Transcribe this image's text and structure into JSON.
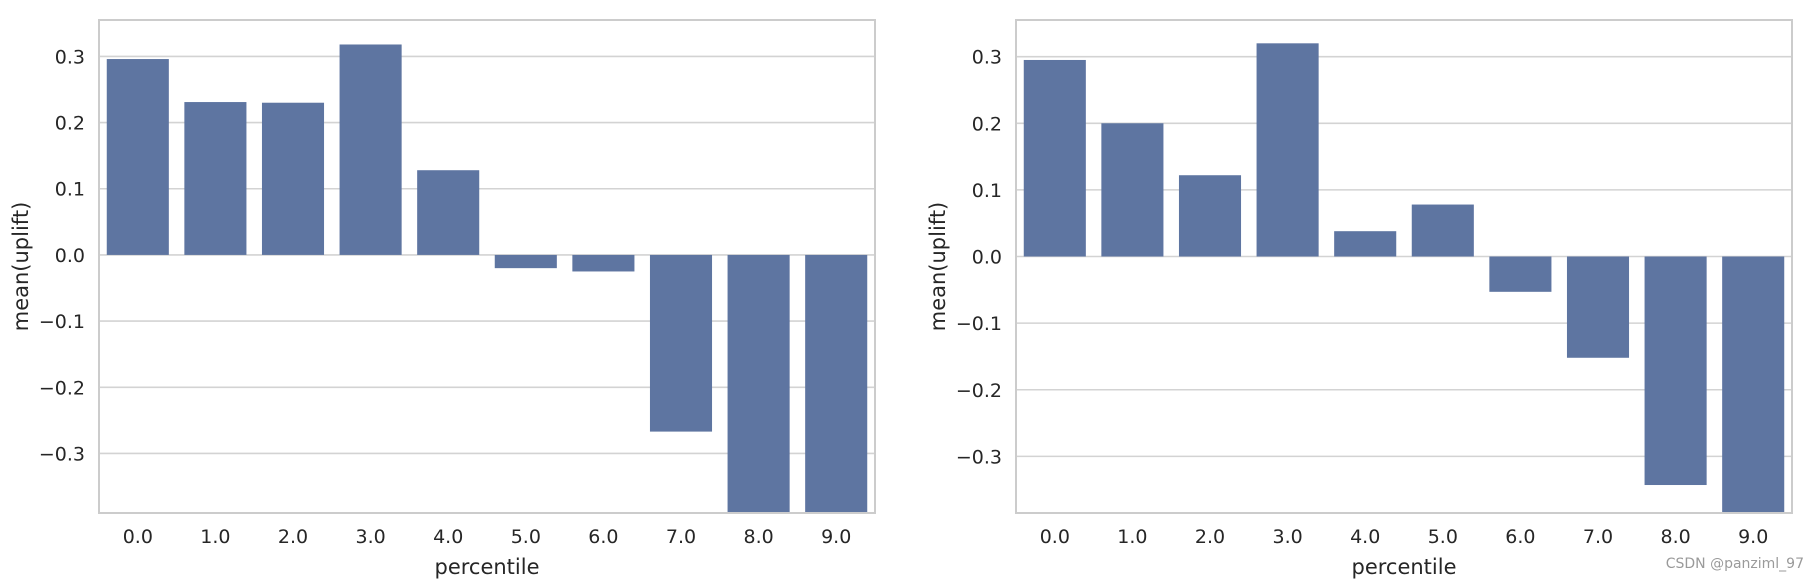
{
  "chart_data": [
    {
      "type": "bar",
      "categories": [
        "0.0",
        "1.0",
        "2.0",
        "3.0",
        "4.0",
        "5.0",
        "6.0",
        "7.0",
        "8.0",
        "9.0"
      ],
      "values": [
        0.296,
        0.231,
        0.23,
        0.318,
        0.128,
        -0.02,
        -0.025,
        -0.267,
        -0.39,
        -0.39
      ],
      "xlabel": "percentile",
      "ylabel": "mean(uplift)",
      "ylim": [
        -0.39,
        0.355
      ],
      "yticks": [
        -0.3,
        -0.2,
        -0.1,
        0.0,
        0.1,
        0.2,
        0.3
      ],
      "ytick_labels": [
        "−0.3",
        "−0.2",
        "−0.1",
        "0.0",
        "0.1",
        "0.2",
        "0.3"
      ],
      "grid": true,
      "bar_color": "#5e75a1"
    },
    {
      "type": "bar",
      "categories": [
        "0.0",
        "1.0",
        "2.0",
        "3.0",
        "4.0",
        "5.0",
        "6.0",
        "7.0",
        "8.0",
        "9.0"
      ],
      "values": [
        0.295,
        0.2,
        0.122,
        0.32,
        0.038,
        0.078,
        -0.053,
        -0.152,
        -0.343,
        -0.385
      ],
      "xlabel": "percentile",
      "ylabel": "mean(uplift)",
      "ylim": [
        -0.385,
        0.355
      ],
      "yticks": [
        -0.3,
        -0.2,
        -0.1,
        0.0,
        0.1,
        0.2,
        0.3
      ],
      "ytick_labels": [
        "−0.3",
        "−0.2",
        "−0.1",
        "0.0",
        "0.1",
        "0.2",
        "0.3"
      ],
      "grid": true,
      "bar_color": "#5e75a1"
    }
  ],
  "watermark": "CSDN @panziml_97",
  "colors": {
    "grid": "#d3d3d3",
    "frame": "#cccccc",
    "text": "#262626"
  }
}
